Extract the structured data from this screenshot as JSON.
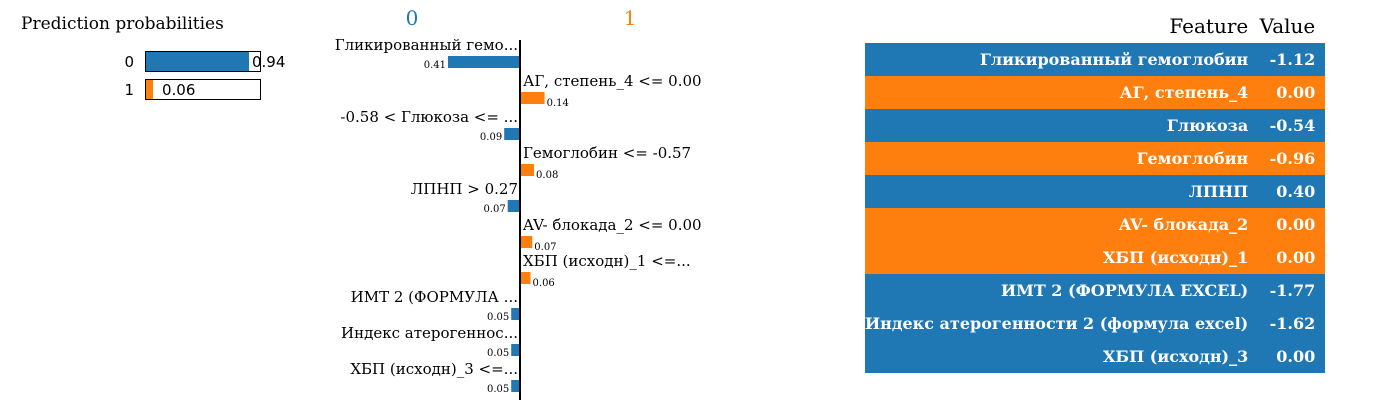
{
  "colors": {
    "class0": "#1f77b4",
    "class1": "#ff7f0e"
  },
  "probabilities": {
    "title": "Prediction probabilities",
    "rows": [
      {
        "label": "0",
        "value": 0.94,
        "display": "0.94",
        "color": "#1f77b4"
      },
      {
        "label": "1",
        "value": 0.06,
        "display": "0.06",
        "color": "#ff7f0e"
      }
    ]
  },
  "chart_data": {
    "type": "bar",
    "class_labels": [
      "0",
      "1"
    ],
    "xlim": [
      -0.41,
      0.41
    ],
    "items": [
      {
        "label": "Гликированный гемо...",
        "value": 0.41,
        "display": "0.41",
        "class": 0
      },
      {
        "label": "АГ, степень_4 <= 0.00",
        "value": 0.14,
        "display": "0.14",
        "class": 1
      },
      {
        "label": "-0.58 < Глюкоза <= ...",
        "value": 0.09,
        "display": "0.09",
        "class": 0
      },
      {
        "label": "Гемоглобин <= -0.57",
        "value": 0.08,
        "display": "0.08",
        "class": 1
      },
      {
        "label": "ЛПНП > 0.27",
        "value": 0.07,
        "display": "0.07",
        "class": 0
      },
      {
        "label": "AV- блокада_2 <= 0.00",
        "value": 0.07,
        "display": "0.07",
        "class": 1
      },
      {
        "label": "ХБП (исходн)_1 <=...",
        "value": 0.06,
        "display": "0.06",
        "class": 1
      },
      {
        "label": "ИМТ 2 (ФОРМУЛА ...",
        "value": 0.05,
        "display": "0.05",
        "class": 0
      },
      {
        "label": "Индекс атерогеннос...",
        "value": 0.05,
        "display": "0.05",
        "class": 0
      },
      {
        "label": "ХБП (исходн)_3 <=...",
        "value": 0.05,
        "display": "0.05",
        "class": 0
      }
    ]
  },
  "table": {
    "header": {
      "feature": "Feature",
      "value": "Value"
    },
    "rows": [
      {
        "feature": "Гликированный гемоглобин",
        "value": "-1.12",
        "class": 0
      },
      {
        "feature": "АГ, степень_4",
        "value": "0.00",
        "class": 1
      },
      {
        "feature": "Глюкоза",
        "value": "-0.54",
        "class": 0
      },
      {
        "feature": "Гемоглобин",
        "value": "-0.96",
        "class": 1
      },
      {
        "feature": "ЛПНП",
        "value": "0.40",
        "class": 0
      },
      {
        "feature": "AV- блокада_2",
        "value": "0.00",
        "class": 1
      },
      {
        "feature": "ХБП (исходн)_1",
        "value": "0.00",
        "class": 1
      },
      {
        "feature": "ИМТ 2 (ФОРМУЛА EXCEL)",
        "value": "-1.77",
        "class": 0
      },
      {
        "feature": "Индекс атерогенности 2 (формула excel)",
        "value": "-1.62",
        "class": 0
      },
      {
        "feature": "ХБП (исходн)_3",
        "value": "0.00",
        "class": 0
      }
    ]
  }
}
